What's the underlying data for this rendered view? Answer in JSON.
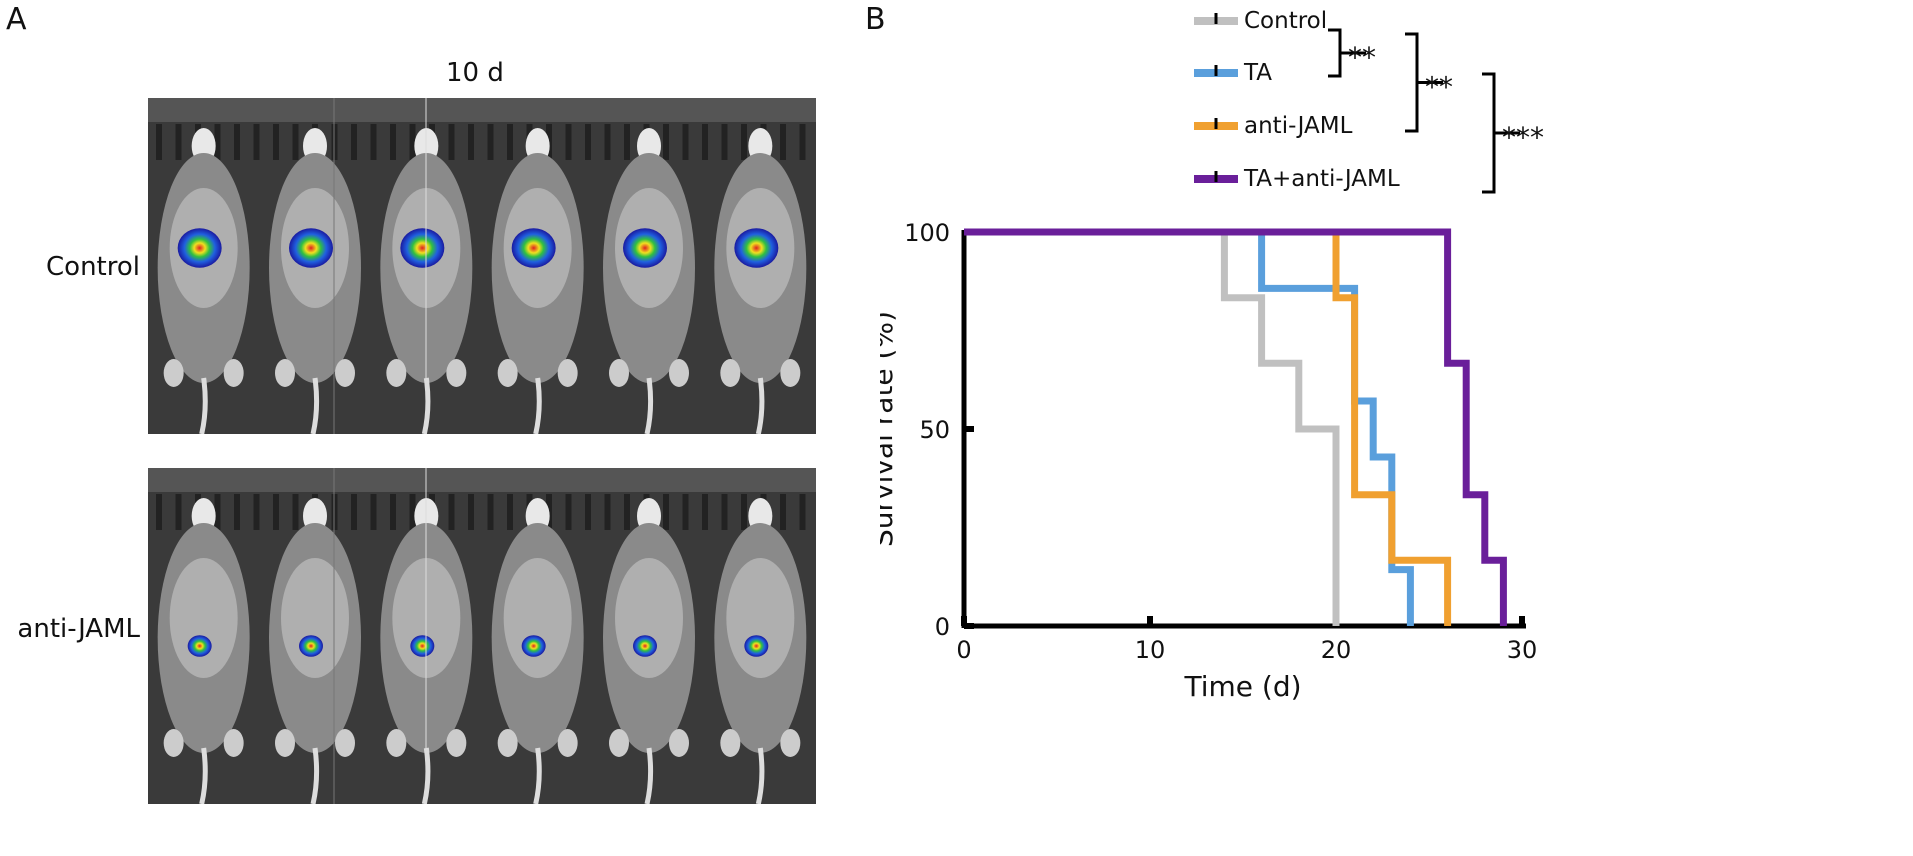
{
  "panel_a": {
    "letter": "A",
    "title": "10 d",
    "row_labels": [
      "Control",
      "anti-JAML"
    ]
  },
  "panel_b": {
    "letter": "B",
    "significance": [
      "**",
      "**",
      "***"
    ]
  },
  "chart_data": {
    "type": "line",
    "step": true,
    "xlabel": "Time (d)",
    "ylabel": "Survival rate (%)",
    "xlim": [
      0,
      30
    ],
    "ylim": [
      0,
      100
    ],
    "xticks": [
      0,
      10,
      20,
      30
    ],
    "yticks": [
      0,
      50,
      100
    ],
    "grid": false,
    "legend_position": "top-right",
    "series": [
      {
        "name": "Control",
        "color": "#c0c0c0",
        "x": [
          0,
          14,
          16,
          18,
          20
        ],
        "y": [
          100,
          83.3,
          66.7,
          50,
          0
        ]
      },
      {
        "name": "TA",
        "color": "#5a9fdc",
        "x": [
          0,
          16,
          21,
          22,
          23,
          24
        ],
        "y": [
          100,
          85.7,
          57.1,
          42.9,
          14.3,
          0
        ]
      },
      {
        "name": "anti-JAML",
        "color": "#f0a030",
        "x": [
          0,
          20,
          21,
          23,
          26
        ],
        "y": [
          100,
          83.3,
          33.3,
          16.7,
          0
        ]
      },
      {
        "name": "TA+anti-JAML",
        "color": "#6a1f9a",
        "x": [
          0,
          26,
          27,
          28,
          29
        ],
        "y": [
          100,
          66.7,
          33.3,
          16.7,
          0
        ]
      }
    ]
  }
}
